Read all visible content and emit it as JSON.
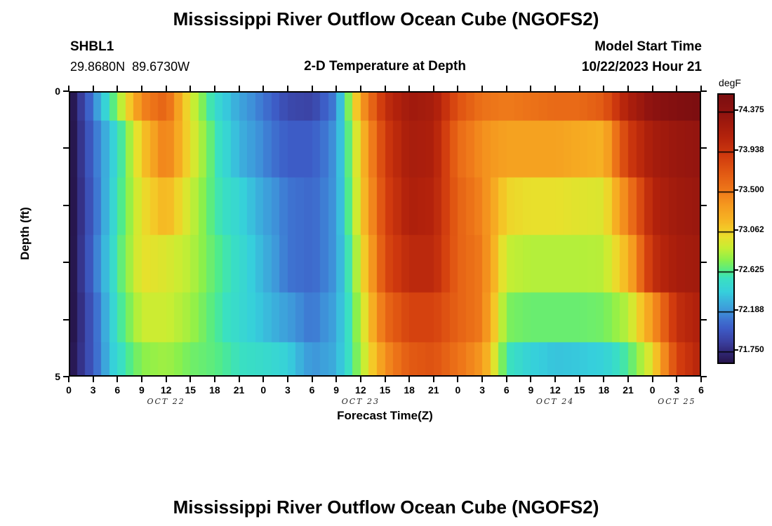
{
  "header": {
    "title": "Mississippi River Outflow Ocean Cube (NGOFS2)",
    "station_id": "SHBL1",
    "station_coords": "29.8680N  89.6730W",
    "plot_subtitle": "2-D Temperature at Depth",
    "model_start_label": "Model Start Time",
    "model_start_value": "10/22/2023 Hour 21"
  },
  "footer": {
    "next_plot_title": "Mississippi River Outflow Ocean Cube (NGOFS2)"
  },
  "chart_data": {
    "type": "heatmap",
    "title": "2-D Temperature at Depth",
    "xlabel": "Forecast Time(Z)",
    "ylabel": "Depth (ft)",
    "units": "degF",
    "xlim_hours": [
      0,
      78
    ],
    "ylim_ft": [
      0,
      5
    ],
    "grid": false,
    "x_ticks": [
      {
        "hour": 0,
        "label": "0"
      },
      {
        "hour": 3,
        "label": "3"
      },
      {
        "hour": 6,
        "label": "6"
      },
      {
        "hour": 9,
        "label": "9"
      },
      {
        "hour": 12,
        "label": "12"
      },
      {
        "hour": 15,
        "label": "15"
      },
      {
        "hour": 18,
        "label": "18"
      },
      {
        "hour": 21,
        "label": "21"
      },
      {
        "hour": 24,
        "label": "0"
      },
      {
        "hour": 27,
        "label": "3"
      },
      {
        "hour": 30,
        "label": "6"
      },
      {
        "hour": 33,
        "label": "9"
      },
      {
        "hour": 36,
        "label": "12"
      },
      {
        "hour": 39,
        "label": "15"
      },
      {
        "hour": 42,
        "label": "18"
      },
      {
        "hour": 45,
        "label": "21"
      },
      {
        "hour": 48,
        "label": "0"
      },
      {
        "hour": 51,
        "label": "3"
      },
      {
        "hour": 54,
        "label": "6"
      },
      {
        "hour": 57,
        "label": "9"
      },
      {
        "hour": 60,
        "label": "12"
      },
      {
        "hour": 63,
        "label": "15"
      },
      {
        "hour": 66,
        "label": "18"
      },
      {
        "hour": 69,
        "label": "21"
      },
      {
        "hour": 72,
        "label": "0"
      },
      {
        "hour": 75,
        "label": "3"
      },
      {
        "hour": 78,
        "label": "6"
      }
    ],
    "x_date_labels": [
      {
        "hour": 12,
        "label": "OCT 22"
      },
      {
        "hour": 36,
        "label": "OCT 23"
      },
      {
        "hour": 60,
        "label": "OCT 24"
      },
      {
        "hour": 75,
        "label": "OCT 25"
      }
    ],
    "y_ticks_ft": [
      0,
      1,
      2,
      3,
      4,
      5
    ],
    "y_tick_labels": [
      {
        "depth": 0,
        "label": "0"
      },
      {
        "depth": 5,
        "label": "5"
      }
    ],
    "depth_bands_ft": [
      [
        0,
        0.52
      ],
      [
        0.52,
        1.51
      ],
      [
        1.51,
        2.52
      ],
      [
        2.52,
        3.52
      ],
      [
        3.52,
        4.4
      ],
      [
        4.4,
        5.0
      ]
    ],
    "time_anchors_hours": [
      0,
      3,
      6,
      9,
      12,
      15,
      18,
      21,
      24,
      27,
      30,
      33,
      36,
      39,
      42,
      45,
      48,
      51,
      54,
      57,
      60,
      63,
      66,
      69,
      72,
      75,
      78
    ],
    "values_degF_by_band": [
      [
        71.55,
        72.12,
        72.75,
        73.45,
        73.65,
        72.95,
        72.5,
        72.25,
        72.1,
        71.9,
        71.87,
        72.15,
        73.3,
        74.0,
        74.25,
        74.2,
        73.75,
        73.55,
        73.5,
        73.55,
        73.6,
        73.6,
        73.7,
        74.15,
        74.4,
        74.5,
        74.56
      ],
      [
        71.55,
        72.05,
        72.5,
        73.1,
        73.5,
        73.0,
        72.6,
        72.3,
        72.15,
        72.0,
        72.0,
        72.2,
        73.1,
        73.9,
        74.2,
        74.15,
        73.6,
        73.4,
        73.3,
        73.3,
        73.3,
        73.25,
        73.2,
        73.9,
        74.2,
        74.3,
        74.35
      ],
      [
        71.55,
        72.02,
        72.55,
        73.0,
        73.2,
        72.9,
        72.6,
        72.45,
        72.25,
        72.1,
        72.05,
        72.2,
        73.05,
        73.85,
        74.15,
        74.1,
        73.65,
        73.45,
        73.05,
        73.0,
        73.0,
        72.97,
        72.95,
        73.5,
        74.1,
        74.25,
        74.3
      ],
      [
        71.55,
        72.05,
        72.6,
        73.0,
        72.95,
        72.85,
        72.65,
        72.5,
        72.3,
        72.1,
        72.05,
        72.2,
        72.95,
        73.8,
        74.05,
        74.05,
        73.65,
        73.5,
        72.88,
        72.84,
        72.84,
        72.84,
        72.85,
        73.2,
        74.0,
        74.2,
        74.25
      ],
      [
        71.55,
        72.0,
        72.55,
        72.9,
        72.9,
        72.8,
        72.62,
        72.48,
        72.35,
        72.22,
        72.1,
        72.25,
        72.85,
        73.6,
        73.85,
        73.85,
        73.65,
        73.5,
        72.72,
        72.68,
        72.68,
        72.68,
        72.7,
        72.85,
        73.35,
        74.0,
        74.15
      ],
      [
        71.58,
        72.0,
        72.5,
        72.75,
        72.8,
        72.7,
        72.65,
        72.55,
        72.5,
        72.42,
        72.18,
        72.28,
        72.8,
        73.4,
        73.7,
        73.75,
        73.55,
        73.35,
        72.58,
        72.42,
        72.36,
        72.38,
        72.42,
        72.62,
        73.0,
        73.85,
        74.1
      ]
    ],
    "colorbar": {
      "label": "degF",
      "vmin": 71.63,
      "vmax": 74.56,
      "tick_values": [
        74.375,
        73.938,
        73.5,
        73.062,
        72.625,
        72.188,
        71.75
      ],
      "tick_labels": [
        "74.375",
        "73.938",
        "73.500",
        "73.062",
        "72.625",
        "72.188",
        "71.750"
      ]
    },
    "colormap_stops": [
      [
        71.63,
        "#27164e"
      ],
      [
        71.75,
        "#322a7a"
      ],
      [
        71.85,
        "#3a3f9f"
      ],
      [
        72.0,
        "#3d5cc6"
      ],
      [
        72.1,
        "#3e74d1"
      ],
      [
        72.188,
        "#3e96da"
      ],
      [
        72.3,
        "#3bb2dc"
      ],
      [
        72.4,
        "#36cfdc"
      ],
      [
        72.55,
        "#3ae0c2"
      ],
      [
        72.625,
        "#4feb8c"
      ],
      [
        72.75,
        "#8af04c"
      ],
      [
        72.88,
        "#c6ee33"
      ],
      [
        73.0,
        "#e8e02c"
      ],
      [
        73.1,
        "#f4c927"
      ],
      [
        73.2,
        "#f6b223"
      ],
      [
        73.35,
        "#f59a1f"
      ],
      [
        73.5,
        "#ef7a1a"
      ],
      [
        73.7,
        "#e25a13"
      ],
      [
        73.9,
        "#d03a0e"
      ],
      [
        74.1,
        "#b4230c"
      ],
      [
        74.25,
        "#a01a0d"
      ],
      [
        74.375,
        "#8f1310"
      ],
      [
        74.56,
        "#7c0e10"
      ]
    ]
  }
}
